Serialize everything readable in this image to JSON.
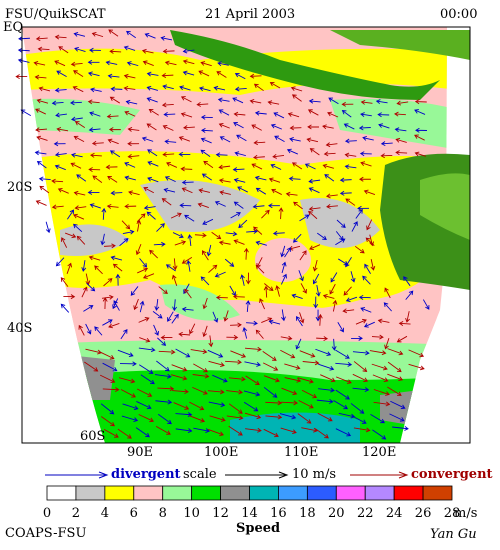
{
  "header": {
    "left": "FSU/QuikSCAT",
    "center": "21 April 2003",
    "right": "00:00"
  },
  "map": {
    "lat_labels": [
      "EQ",
      "20S",
      "40S",
      "60S"
    ],
    "lon_labels": [
      "90E",
      "100E",
      "110E",
      "120E"
    ]
  },
  "legend": {
    "divergent": "divergent",
    "scale": "scale",
    "scale_value": "10 m/s",
    "convergent": "convergent"
  },
  "colorbar": {
    "ticks": [
      0,
      2,
      4,
      6,
      8,
      10,
      12,
      14,
      16,
      18,
      20,
      22,
      24,
      26,
      28
    ],
    "colors": [
      "#ffffff",
      "#c8c8c8",
      "#ffff00",
      "#ffc4c4",
      "#98f898",
      "#00e000",
      "#909090",
      "#00b4b4",
      "#3c9cff",
      "#2c5cff",
      "#ff60ff",
      "#b488ff",
      "#ff0000",
      "#d04000",
      "#000000"
    ],
    "unit": "m/s",
    "title": "Speed"
  },
  "footer": {
    "left": "COAPS-FSU",
    "right": "Yan Gu"
  }
}
